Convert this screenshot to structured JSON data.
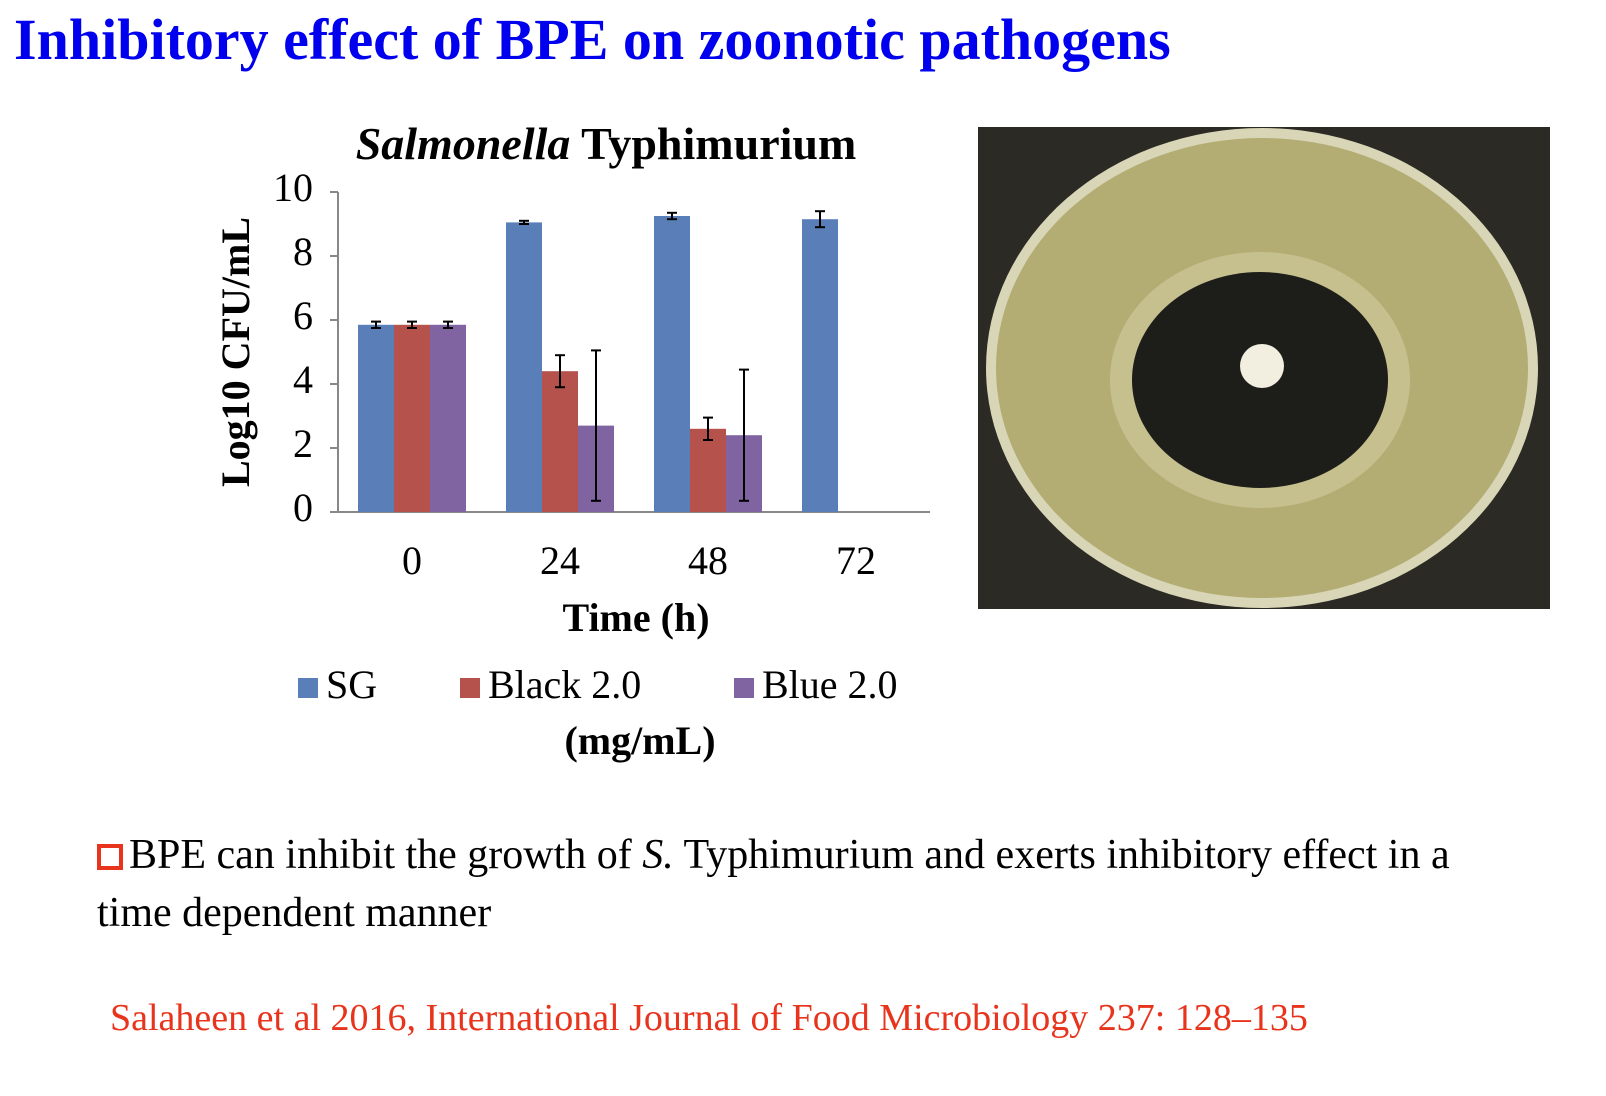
{
  "slide_title": "Inhibitory effect of BPE on zoonotic pathogens",
  "chart_data": {
    "type": "bar",
    "title": [
      "Salmonella",
      "Typhimurium"
    ],
    "xlabel": "Time (h)",
    "ylabel": "Log10 CFU/mL",
    "categories": [
      "0",
      "24",
      "48",
      "72"
    ],
    "series": [
      {
        "name": "SG",
        "color": "#5a7fb8",
        "values": [
          5.85,
          9.05,
          9.25,
          9.15
        ],
        "errors": [
          0.1,
          0.05,
          0.1,
          0.25
        ]
      },
      {
        "name": "Black 2.0",
        "color": "#b5524c",
        "values": [
          5.85,
          4.4,
          2.6,
          null
        ],
        "errors": [
          0.1,
          0.5,
          0.35,
          null
        ]
      },
      {
        "name": "Blue 2.0",
        "color": "#8064a2",
        "values": [
          5.85,
          2.7,
          2.4,
          null
        ],
        "errors": [
          0.1,
          2.35,
          2.05,
          null
        ]
      }
    ],
    "legend_title": "(mg/mL)",
    "ylim": [
      0,
      10
    ],
    "yticks": [
      0,
      2,
      4,
      6,
      8,
      10
    ]
  },
  "bullet": [
    "BPE can inhibit the growth of ",
    "S.",
    " Typhimurium and exerts inhibitory effect in a time dependent manner"
  ],
  "citation": "Salaheen et al 2016, International Journal of Food Microbiology 237: 128–135"
}
